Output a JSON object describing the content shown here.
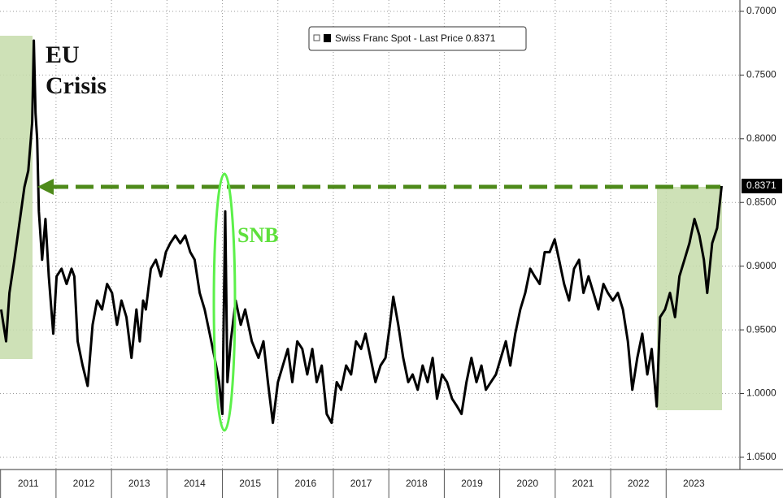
{
  "chart_data": {
    "type": "line",
    "legend": "Swiss Franc Spot - Last Price 0.8371",
    "annotations": [
      "EU",
      "Crisis",
      "SNB"
    ],
    "invert_y": true,
    "grid": true,
    "xlim": [
      2010.99,
      2024.33
    ],
    "ylim": [
      0.6911,
      1.0596
    ],
    "yticks": [
      {
        "value": 0.7,
        "label": "0.7000"
      },
      {
        "value": 0.75,
        "label": "0.7500"
      },
      {
        "value": 0.8,
        "label": "0.8000"
      },
      {
        "value": 0.85,
        "label": "0.8500"
      },
      {
        "value": 0.9,
        "label": "0.9000"
      },
      {
        "value": 0.95,
        "label": "0.9500"
      },
      {
        "value": 1.0,
        "label": "1.0000"
      },
      {
        "value": 1.05,
        "label": "1.0500"
      }
    ],
    "xticks": [
      {
        "value": 2011,
        "label": "2011"
      },
      {
        "value": 2012,
        "label": "2012"
      },
      {
        "value": 2013,
        "label": "2013"
      },
      {
        "value": 2014,
        "label": "2014"
      },
      {
        "value": 2015,
        "label": "2015"
      },
      {
        "value": 2016,
        "label": "2016"
      },
      {
        "value": 2017,
        "label": "2017"
      },
      {
        "value": 2018,
        "label": "2018"
      },
      {
        "value": 2019,
        "label": "2019"
      },
      {
        "value": 2020,
        "label": "2020"
      },
      {
        "value": 2021,
        "label": "2021"
      },
      {
        "value": 2022,
        "label": "2022"
      },
      {
        "value": 2023,
        "label": "2023"
      }
    ],
    "x": [
      2011.01,
      2011.1,
      2011.16,
      2011.25,
      2011.35,
      2011.43,
      2011.5,
      2011.57,
      2011.6,
      2011.63,
      2011.66,
      2011.69,
      2011.75,
      2011.81,
      2011.87,
      2011.95,
      2012.01,
      2012.1,
      2012.19,
      2012.28,
      2012.33,
      2012.39,
      2012.48,
      2012.57,
      2012.66,
      2012.74,
      2012.83,
      2012.92,
      2013.01,
      2013.1,
      2013.18,
      2013.27,
      2013.36,
      2013.45,
      2013.51,
      2013.57,
      2013.62,
      2013.71,
      2013.8,
      2013.89,
      2013.98,
      2014.06,
      2014.15,
      2014.24,
      2014.33,
      2014.42,
      2014.5,
      2014.59,
      2014.68,
      2014.77,
      2014.86,
      2014.94,
      2015.0,
      2015.05,
      2015.09,
      2015.15,
      2015.24,
      2015.33,
      2015.41,
      2015.53,
      2015.65,
      2015.74,
      2015.82,
      2015.91,
      2016.0,
      2016.09,
      2016.18,
      2016.26,
      2016.35,
      2016.44,
      2016.53,
      2016.62,
      2016.7,
      2016.79,
      2016.88,
      2016.97,
      2017.06,
      2017.14,
      2017.23,
      2017.32,
      2017.41,
      2017.5,
      2017.58,
      2017.67,
      2017.76,
      2017.85,
      2017.94,
      2018.02,
      2018.08,
      2018.17,
      2018.26,
      2018.35,
      2018.43,
      2018.52,
      2018.61,
      2018.7,
      2018.79,
      2018.87,
      2018.96,
      2019.05,
      2019.14,
      2019.23,
      2019.31,
      2019.4,
      2019.49,
      2019.58,
      2019.67,
      2019.75,
      2019.84,
      2019.93,
      2020.02,
      2020.11,
      2020.19,
      2020.28,
      2020.37,
      2020.46,
      2020.55,
      2020.63,
      2020.72,
      2020.81,
      2020.9,
      2020.99,
      2021.07,
      2021.16,
      2021.25,
      2021.34,
      2021.43,
      2021.51,
      2021.6,
      2021.69,
      2021.78,
      2021.87,
      2021.95,
      2022.04,
      2022.13,
      2022.22,
      2022.31,
      2022.39,
      2022.48,
      2022.57,
      2022.66,
      2022.74,
      2022.83,
      2022.89,
      2022.98,
      2023.07,
      2023.16,
      2023.24,
      2023.33,
      2023.42,
      2023.51,
      2023.6,
      2023.68,
      2023.74,
      2023.83,
      2023.92,
      2024.0
    ],
    "series": [
      {
        "name": "Swiss Franc Spot - Last Price 0.8371",
        "color": "#000000",
        "values": [
          0.934,
          0.959,
          0.921,
          0.895,
          0.863,
          0.838,
          0.825,
          0.787,
          0.723,
          0.78,
          0.8,
          0.857,
          0.895,
          0.863,
          0.908,
          0.953,
          0.908,
          0.902,
          0.914,
          0.902,
          0.908,
          0.959,
          0.978,
          0.994,
          0.946,
          0.927,
          0.934,
          0.914,
          0.921,
          0.946,
          0.927,
          0.94,
          0.972,
          0.934,
          0.959,
          0.927,
          0.934,
          0.902,
          0.895,
          0.908,
          0.889,
          0.882,
          0.876,
          0.882,
          0.876,
          0.889,
          0.895,
          0.921,
          0.934,
          0.953,
          0.972,
          0.991,
          1.016,
          0.857,
          0.991,
          0.959,
          0.927,
          0.946,
          0.934,
          0.959,
          0.972,
          0.959,
          0.991,
          1.023,
          0.991,
          0.978,
          0.965,
          0.991,
          0.959,
          0.965,
          0.985,
          0.965,
          0.991,
          0.978,
          1.016,
          1.023,
          0.991,
          0.997,
          0.978,
          0.985,
          0.959,
          0.965,
          0.953,
          0.972,
          0.991,
          0.978,
          0.972,
          0.946,
          0.924,
          0.946,
          0.972,
          0.991,
          0.985,
          0.997,
          0.978,
          0.991,
          0.972,
          1.004,
          0.985,
          0.991,
          1.004,
          1.01,
          1.016,
          0.991,
          0.972,
          0.991,
          0.978,
          0.997,
          0.991,
          0.985,
          0.972,
          0.959,
          0.978,
          0.953,
          0.934,
          0.921,
          0.902,
          0.908,
          0.914,
          0.889,
          0.889,
          0.879,
          0.895,
          0.914,
          0.927,
          0.902,
          0.895,
          0.921,
          0.908,
          0.921,
          0.934,
          0.914,
          0.921,
          0.927,
          0.921,
          0.934,
          0.959,
          0.997,
          0.972,
          0.953,
          0.985,
          0.965,
          1.01,
          0.94,
          0.934,
          0.921,
          0.94,
          0.908,
          0.895,
          0.882,
          0.863,
          0.876,
          0.895,
          0.921,
          0.882,
          0.87,
          0.8371
        ]
      }
    ]
  }
}
